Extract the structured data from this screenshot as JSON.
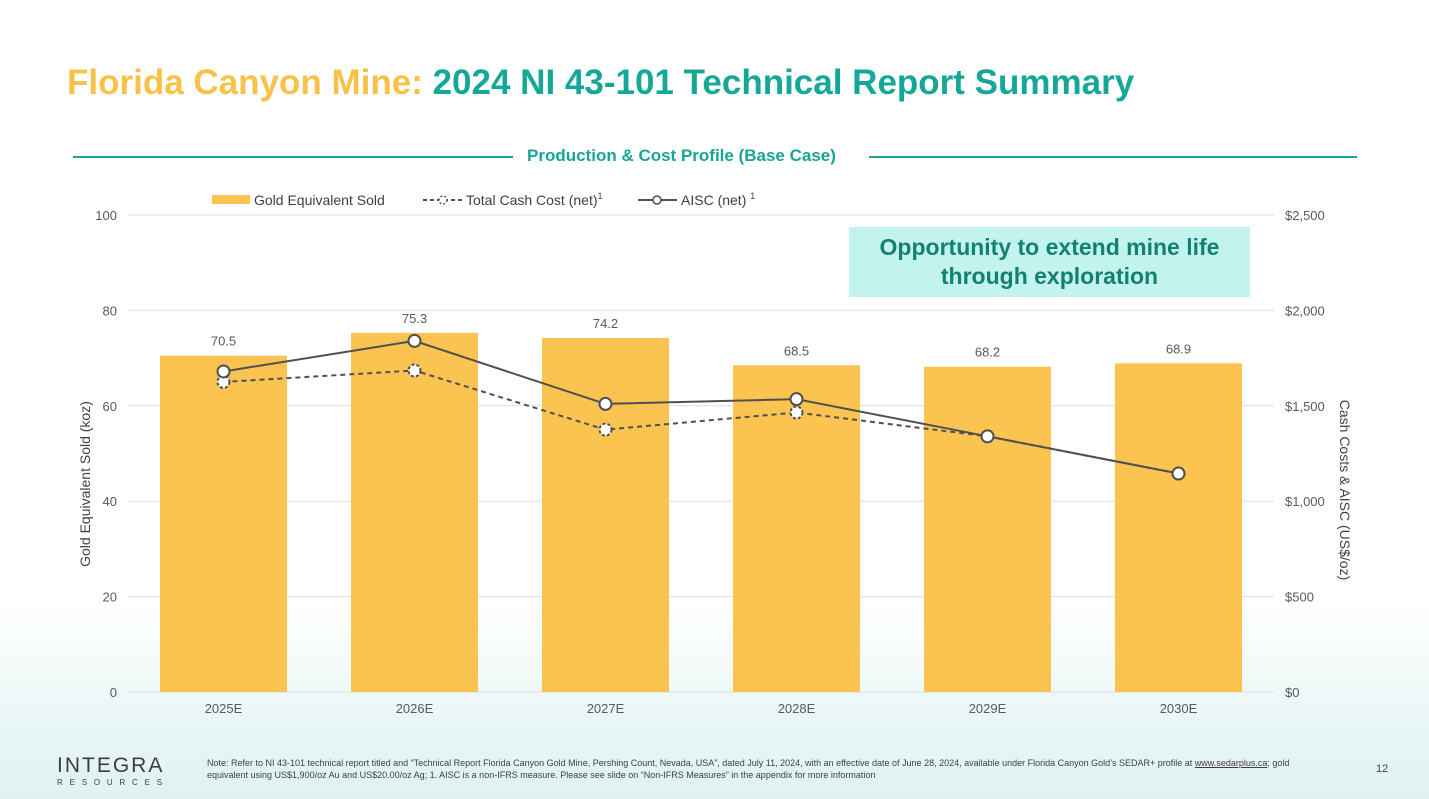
{
  "title": {
    "part1": "Florida Canyon Mine:",
    "part2": "2024 NI 43-101 Technical Report Summary"
  },
  "section_label": "Production & Cost Profile (Base Case)",
  "callout": "Opportunity to extend mine life through exploration",
  "colors": {
    "title_accent": "#f8c14a",
    "teal": "#19a595",
    "bar": "#fbc34f",
    "line": "#505050",
    "callout_bg": "#c3f3ee"
  },
  "chart_data": {
    "type": "bar",
    "categories": [
      "2025E",
      "2026E",
      "2027E",
      "2028E",
      "2029E",
      "2030E"
    ],
    "series": [
      {
        "name": "Gold Equivalent Sold",
        "type": "bar",
        "axis": "left",
        "values": [
          70.5,
          75.3,
          74.2,
          68.5,
          68.2,
          68.9
        ],
        "data_labels": [
          "70.5",
          "75.3",
          "74.2",
          "68.5",
          "68.2",
          "68.9"
        ]
      },
      {
        "name": "Total Cash Cost (net)",
        "type": "line",
        "style": "dashed",
        "axis": "right",
        "values": [
          1625,
          1685,
          1375,
          1465,
          1340,
          1145
        ]
      },
      {
        "name": "AISC (net)",
        "type": "line",
        "style": "solid",
        "axis": "right",
        "values": [
          1680,
          1840,
          1510,
          1535,
          1340,
          1145
        ]
      }
    ],
    "legend": [
      {
        "label": "Gold Equivalent Sold",
        "sup": ""
      },
      {
        "label": "Total Cash Cost (net)",
        "sup": "1"
      },
      {
        "label": "AISC (net)",
        "sup": "1"
      }
    ],
    "legend_position": "top-left",
    "ylabel": "Gold Equivalent Sold (koz)",
    "y2label": "Cash Costs & AISC (US$/oz)",
    "ylim": [
      0,
      100
    ],
    "y2lim": [
      0,
      2500
    ],
    "yticks": [
      "0",
      "20",
      "40",
      "60",
      "80",
      "100"
    ],
    "y2ticks": [
      "$0",
      "$500",
      "$1,000",
      "$1,500",
      "$2,000",
      "$2,500"
    ],
    "grid": true
  },
  "footer": {
    "logo_name": "INTEGRA",
    "logo_sub": "RESOURCES",
    "note_before": "Note: Refer to NI 43-101 technical report titled and “Technical Report Florida Canyon Gold Mine, Pershing Count, Nevada, USA”, dated July 11, 2024, with an effective date of June 28, 2024, available under Florida Canyon Gold’s SEDAR+ profile at ",
    "note_link": "www.sedarplus.ca",
    "note_after": "; gold equivalent using US$1,900/oz Au and US$20.00/oz Ag; 1. AISC is a non-IFRS measure. Please see slide on “Non-IFRS Measures” in the appendix for more information",
    "page_number": "12"
  }
}
